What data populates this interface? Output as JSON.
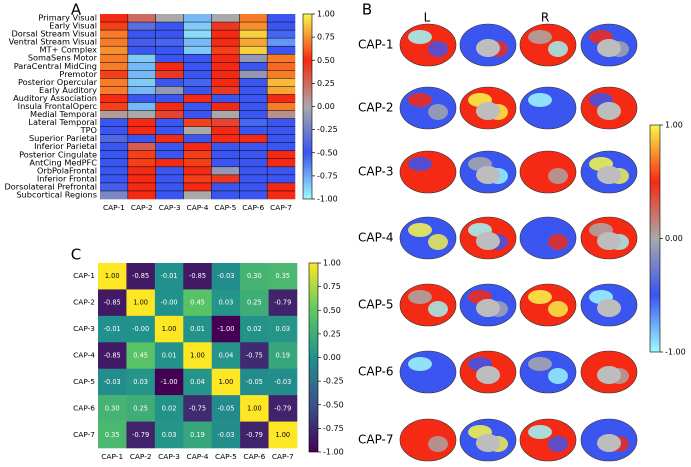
{
  "panel_labels": [
    "A",
    "B",
    "C"
  ],
  "chart_data": [
    {
      "type": "heatmap",
      "categories": [
        "CAP-1",
        "CAP-2",
        "CAP-3",
        "CAP-4",
        "CAP-5",
        "CAP-6",
        "CAP-7"
      ],
      "rows": [
        "Primary Visual",
        "Early Visual",
        "Dorsal Stream Visual",
        "Ventral Stream Visual",
        "MT+ Complex",
        "SomaSens Motor",
        "ParaCentral MidCing",
        "Premotor",
        "Posterior Opercular",
        "Early Auditory",
        "Auditory Association",
        "Insula FrontalOperc",
        "Medial Temporal",
        "Lateral Temporal",
        "TPO",
        "Superior Parietal",
        "Inferior Parietal",
        "Posterior Cingulate",
        "AntCing MedPFC",
        "OrbPolaFrontal",
        "Inferior Frontal",
        "Dorsolateral Prefrontal",
        "Subcortical Regions"
      ],
      "values": [
        [
          0.5,
          0.25,
          0.0,
          -0.8,
          0.0,
          0.7,
          -0.5
        ],
        [
          0.55,
          -0.35,
          -0.5,
          -0.85,
          0.45,
          0.75,
          -0.5
        ],
        [
          0.7,
          -0.5,
          -0.5,
          -0.9,
          0.5,
          0.9,
          -0.55
        ],
        [
          0.7,
          -0.45,
          -0.55,
          -0.8,
          0.5,
          0.8,
          -0.7
        ],
        [
          0.75,
          -0.5,
          -0.5,
          -0.85,
          0.55,
          0.9,
          -0.5
        ],
        [
          0.7,
          -0.85,
          -0.5,
          -0.5,
          0.5,
          -0.1,
          0.7
        ],
        [
          0.7,
          -0.8,
          0.5,
          -0.5,
          0.5,
          -0.5,
          0.65
        ],
        [
          0.55,
          -0.8,
          0.45,
          -0.5,
          0.5,
          -0.1,
          0.7
        ],
        [
          0.7,
          -0.85,
          -0.5,
          -0.55,
          0.5,
          -0.5,
          0.85
        ],
        [
          0.7,
          -0.8,
          -0.1,
          -0.5,
          0.45,
          -0.5,
          0.8
        ],
        [
          0.5,
          -0.5,
          -0.5,
          0.5,
          -0.5,
          -0.5,
          0.5
        ],
        [
          0.55,
          -0.8,
          0.5,
          -0.5,
          0.5,
          -0.5,
          0.7
        ],
        [
          0.05,
          0.0,
          0.4,
          -0.5,
          0.0,
          -0.5,
          0.1
        ],
        [
          -0.5,
          0.5,
          -0.5,
          0.55,
          0.4,
          -0.55,
          -0.5
        ],
        [
          -0.5,
          0.5,
          -0.5,
          0.0,
          0.5,
          -0.5,
          -0.5
        ],
        [
          -0.4,
          -0.5,
          0.5,
          -0.5,
          0.5,
          0.5,
          -0.5
        ],
        [
          -0.5,
          0.3,
          -0.5,
          0.5,
          -0.5,
          -0.5,
          -0.5
        ],
        [
          -0.5,
          0.55,
          -0.5,
          0.55,
          -0.5,
          -0.5,
          0.5
        ],
        [
          -0.5,
          0.55,
          0.5,
          0.55,
          -0.5,
          -0.5,
          0.5
        ],
        [
          -0.5,
          0.5,
          -0.5,
          0.5,
          -0.1,
          -0.5,
          -0.5
        ],
        [
          -0.5,
          0.5,
          -0.5,
          0.55,
          0.45,
          -0.5,
          -0.5
        ],
        [
          -0.45,
          0.5,
          -0.5,
          0.5,
          -0.5,
          -0.5,
          0.5
        ],
        [
          -0.2,
          0.5,
          -0.5,
          0.0,
          -0.5,
          -0.5,
          0.5
        ]
      ],
      "colormap": [
        "#9ffcfc",
        "#3b55f0",
        "#a9a9a9",
        "#f52a14",
        "#f8f84a"
      ],
      "clim": [
        -1,
        1
      ],
      "cticks": [
        {
          "value": 1,
          "label": "1.00"
        },
        {
          "value": 0.75,
          "label": "0.75"
        },
        {
          "value": 0.5,
          "label": "0.50"
        },
        {
          "value": 0.25,
          "label": "0.25"
        },
        {
          "value": 0,
          "label": "0.00"
        },
        {
          "value": -0.25,
          "label": "-0.25"
        },
        {
          "value": -0.5,
          "label": "-0.50"
        },
        {
          "value": -0.75,
          "label": "-0.75"
        },
        {
          "value": -1,
          "label": "-1.00"
        }
      ]
    },
    {
      "type": "heatmap",
      "categories": [
        "CAP-1",
        "CAP-2",
        "CAP-3",
        "CAP-4",
        "CAP-5",
        "CAP-6",
        "CAP-7"
      ],
      "rows": [
        "CAP-1",
        "CAP-2",
        "CAP-3",
        "CAP-4",
        "CAP-5",
        "CAP-6",
        "CAP-7"
      ],
      "values": [
        [
          1.0,
          -0.85,
          -0.01,
          -0.85,
          -0.03,
          0.3,
          0.35
        ],
        [
          -0.85,
          1.0,
          0,
          0.45,
          0.03,
          0.25,
          -0.79
        ],
        [
          -0.01,
          0,
          1.0,
          0.01,
          -1.0,
          0.02,
          0.03
        ],
        [
          -0.85,
          0.45,
          0.01,
          1.0,
          0.04,
          -0.75,
          0.19
        ],
        [
          -0.03,
          0.03,
          -1.0,
          0.04,
          1.0,
          -0.05,
          -0.03
        ],
        [
          0.3,
          0.25,
          0.02,
          -0.75,
          -0.05,
          1.0,
          -0.79
        ],
        [
          0.35,
          -0.79,
          0.03,
          0.19,
          -0.03,
          -0.79,
          1.0
        ]
      ],
      "value_labels": [
        [
          "1.00",
          "-0.85",
          "-0.01",
          "-0.85",
          "-0.03",
          "0.30",
          "0.35"
        ],
        [
          "-0.85",
          "1.00",
          "-0.00",
          "0.45",
          "0.03",
          "0.25",
          "-0.79"
        ],
        [
          "-0.01",
          "-0.00",
          "1.00",
          "0.01",
          "-1.00",
          "0.02",
          "0.03"
        ],
        [
          "-0.85",
          "0.45",
          "0.01",
          "1.00",
          "0.04",
          "-0.75",
          "0.19"
        ],
        [
          "-0.03",
          "0.03",
          "-1.00",
          "0.04",
          "1.00",
          "-0.05",
          "-0.03"
        ],
        [
          "0.30",
          "0.25",
          "0.02",
          "-0.75",
          "-0.05",
          "1.00",
          "-0.79"
        ],
        [
          "0.35",
          "-0.79",
          "0.03",
          "0.19",
          "-0.03",
          "-0.79",
          "1.00"
        ]
      ],
      "colormap": [
        "#440154",
        "#3b528b",
        "#21918c",
        "#5ec962",
        "#fde725"
      ],
      "clim": [
        -1,
        1
      ],
      "cticks": [
        {
          "value": 1,
          "label": "1.00"
        },
        {
          "value": 0.75,
          "label": "0.75"
        },
        {
          "value": 0.5,
          "label": "0.50"
        },
        {
          "value": 0.25,
          "label": "0.25"
        },
        {
          "value": 0,
          "label": "0.00"
        },
        {
          "value": -0.25,
          "label": "-0.25"
        },
        {
          "value": -0.5,
          "label": "-0.50"
        },
        {
          "value": -0.75,
          "label": "-0.75"
        },
        {
          "value": -1,
          "label": "-1.00"
        }
      ]
    }
  ],
  "brain_panel": {
    "hemispheres": [
      "L",
      "R"
    ],
    "rows": [
      "CAP-1",
      "CAP-2",
      "CAP-3",
      "CAP-4",
      "CAP-5",
      "CAP-6",
      "CAP-7"
    ],
    "colormap": [
      "#9ffcfc",
      "#3b55f0",
      "#a9a9a9",
      "#f52a14",
      "#f8f84a"
    ],
    "clim": [
      -1,
      1
    ],
    "cticks": [
      {
        "value": 1,
        "label": "1.00"
      },
      {
        "value": 0,
        "label": "0.00"
      },
      {
        "value": -1,
        "label": "-1.00"
      }
    ]
  }
}
